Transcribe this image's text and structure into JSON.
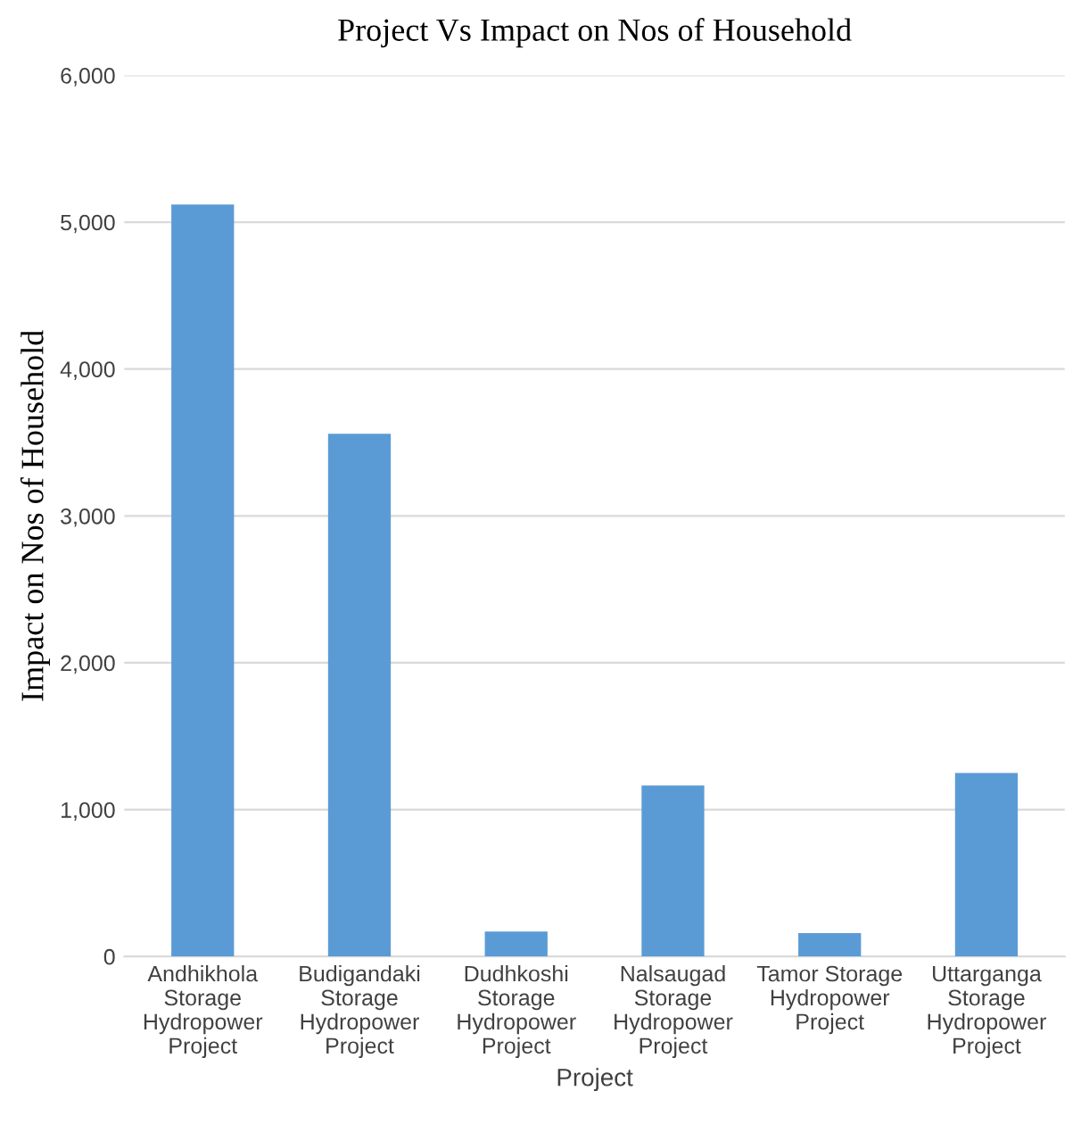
{
  "chart_data": {
    "type": "bar",
    "title": "Project Vs Impact on Nos of Household",
    "xlabel": "Project",
    "ylabel": "Impact on Nos of Household",
    "categories": [
      "Andhikhola\nStorage\nHydropower\nProject",
      "Budigandaki\nStorage\nHydropower\nProject",
      "Dudhkoshi\nStorage\nHydropower\nProject",
      "Nalsaugad\nStorage\nHydropower\nProject",
      "Tamor Storage\nHydropower\nProject",
      "Uttarganga\nStorage\nHydropower\nProject"
    ],
    "values": [
      5120,
      3560,
      170,
      1165,
      160,
      1250
    ],
    "color": "#5b9bd5",
    "ylim": [
      0,
      6000
    ],
    "yticks": [
      {
        "value": 0,
        "label": "0"
      },
      {
        "value": 1000,
        "label": "1,000"
      },
      {
        "value": 2000,
        "label": "2,000"
      },
      {
        "value": 3000,
        "label": "3,000"
      },
      {
        "value": 4000,
        "label": "4,000"
      },
      {
        "value": 5000,
        "label": "5,000"
      },
      {
        "value": 6000,
        "label": "6,000"
      }
    ],
    "grid": "y"
  }
}
